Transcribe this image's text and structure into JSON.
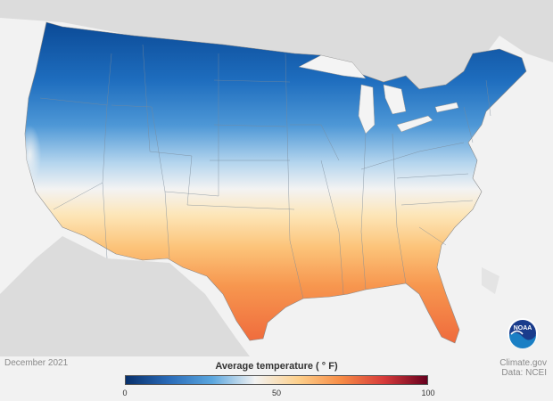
{
  "map": {
    "period": "December 2021",
    "legend_title": "Average temperature ( ° F)",
    "legend_ticks": [
      "0",
      "50",
      "100"
    ],
    "legend_min": 0,
    "legend_max": 100,
    "colorscale": [
      "#08306b",
      "#2a6bb8",
      "#5aa6de",
      "#f2f2f2",
      "#fdd08c",
      "#f78c46",
      "#d63a3a",
      "#67001f"
    ]
  },
  "credits": {
    "source": "Climate.gov",
    "data": "Data: NCEI"
  },
  "logo": {
    "text": "NOAA",
    "colors": {
      "outer": "#ffffff",
      "top": "#1a3c8c",
      "bottom": "#1a7fc4"
    }
  },
  "colors": {
    "land": "#dcdcdc",
    "water": "#f4f4f4",
    "cold": "#1f6fc1",
    "cool": "#78b8e6",
    "mild": "#f4f4f4",
    "warm": "#fcc77a",
    "hot": "#f07a3e"
  }
}
